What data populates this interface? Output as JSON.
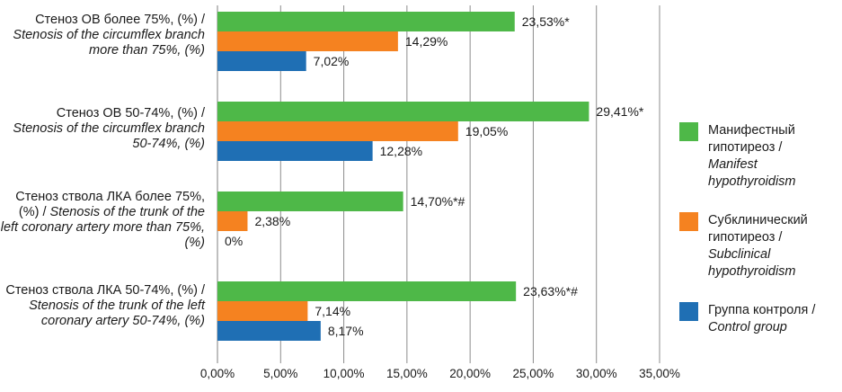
{
  "chart_data": {
    "type": "bar",
    "orientation": "horizontal",
    "categories": [
      {
        "ru": "Стеноз ОВ более 75%, (%) /",
        "en": "Stenosis of the circumflex branch more than 75%, (%)"
      },
      {
        "ru": "Стеноз ОВ 50-74%, (%) /",
        "en": "Stenosis of the circumflex branch 50-74%, (%)"
      },
      {
        "ru": "Стеноз ствола ЛКА более 75%, (%) /",
        "en": "Stenosis of the trunk of the left coronary artery more than 75%, (%)"
      },
      {
        "ru": "Стеноз ствола ЛКА 50-74%, (%) /",
        "en": "Stenosis of the trunk of the left coronary artery 50-74%, (%)"
      }
    ],
    "series": [
      {
        "name_ru": "Манифестный гипотиреоз /",
        "name_en": "Manifest hypothyroidism",
        "color": "#4eb848",
        "values": [
          23.53,
          29.41,
          14.7,
          23.63
        ],
        "labels": [
          "23,53%*",
          "29,41%*",
          "14,70%*#",
          "23,63%*#"
        ]
      },
      {
        "name_ru": "Субклинический гипотиреоз /",
        "name_en": "Subclinical hypothyroidism",
        "color": "#f58220",
        "values": [
          14.29,
          19.05,
          2.38,
          7.14
        ],
        "labels": [
          "14,29%",
          "19,05%",
          "2,38%",
          "7,14%"
        ]
      },
      {
        "name_ru": "Группа контроля /",
        "name_en": "Control group",
        "color": "#1f6fb4",
        "values": [
          7.02,
          12.28,
          0,
          8.17
        ],
        "labels": [
          "7,02%",
          "12,28%",
          "0%",
          "8,17%"
        ]
      }
    ],
    "xlim": [
      0,
      35
    ],
    "xticks": [
      0,
      5,
      10,
      15,
      20,
      25,
      30,
      35
    ],
    "xtick_labels": [
      "0,00%",
      "5,00%",
      "10,00%",
      "15,00%",
      "20,00%",
      "25,00%",
      "30,00%",
      "35,00%"
    ],
    "grid": "vertical",
    "legend_position": "right"
  }
}
